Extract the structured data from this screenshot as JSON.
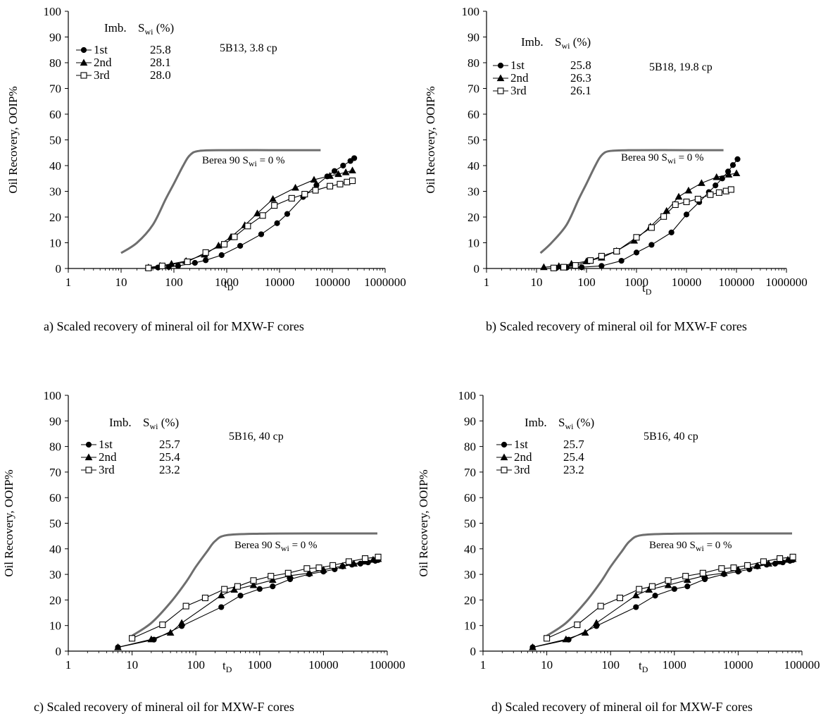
{
  "chart_data": [
    {
      "type": "line",
      "panel": "a",
      "caption": "a) Scaled recovery of mineral oil for MXW-F cores",
      "annotation": "5B13, 3.8 cp",
      "xlabel_main": "t",
      "xlabel_sub": "D",
      "ylabel": "Oil Recovery, OOIP%",
      "xscale": "log",
      "xlim": [
        1,
        1000000
      ],
      "ylim": [
        0,
        100
      ],
      "xticks": [
        "1",
        "10",
        "100",
        "1000",
        "10000",
        "100000",
        "1000000"
      ],
      "yticks": [
        "0",
        "10",
        "20",
        "30",
        "40",
        "50",
        "60",
        "70",
        "80",
        "90",
        "100"
      ],
      "legend": {
        "header_left": "Imb.",
        "header_right_main": "S",
        "header_right_sub": "wi",
        "header_right_tail": " (%)",
        "entries": [
          {
            "label": "1st",
            "swi": "25.8",
            "marker": "circle"
          },
          {
            "label": "2nd",
            "swi": "28.1",
            "marker": "triangle"
          },
          {
            "label": "3rd",
            "swi": "28.0",
            "marker": "square"
          }
        ]
      },
      "reference": {
        "label_main": "Berea  90  S",
        "label_sub": "wi",
        "label_tail": " = 0 %",
        "x": [
          10,
          20,
          40,
          70,
          100,
          150,
          200,
          300,
          1000,
          10000,
          60000
        ],
        "y": [
          6,
          10,
          17,
          27,
          33,
          40,
          44,
          45.7,
          46,
          46,
          46
        ]
      },
      "series": [
        {
          "name": "1st",
          "marker": "circle",
          "x": [
            33,
            50,
            80,
            120,
            250,
            400,
            800,
            1800,
            4500,
            9000,
            14000,
            28000,
            50000,
            80000,
            110000,
            160000,
            220000,
            260000
          ],
          "y": [
            0.3,
            0.4,
            0.6,
            1.0,
            2.2,
            3.2,
            5.2,
            8.8,
            13.3,
            17.6,
            21.2,
            27.8,
            32.4,
            35.8,
            37.9,
            40.0,
            41.8,
            42.9
          ]
        },
        {
          "name": "2nd",
          "marker": "triangle",
          "x": [
            33,
            55,
            90,
            170,
            380,
            700,
            1200,
            2200,
            3800,
            7500,
            20000,
            45000,
            90000,
            130000,
            180000,
            240000
          ],
          "y": [
            0.4,
            1.0,
            1.8,
            2.9,
            5.4,
            8.9,
            12.2,
            16.8,
            21.4,
            27.0,
            31.4,
            34.5,
            36.0,
            36.7,
            37.4,
            38.1
          ]
        },
        {
          "name": "3rd",
          "marker": "square",
          "x": [
            33,
            60,
            180,
            400,
            900,
            1400,
            2500,
            4800,
            8000,
            17000,
            30000,
            48000,
            90000,
            140000,
            190000,
            240000
          ],
          "y": [
            0.2,
            1.0,
            2.6,
            6.2,
            9.4,
            12.3,
            16.5,
            20.6,
            24.5,
            27.3,
            28.9,
            30.4,
            32.0,
            32.8,
            33.6,
            34.1
          ]
        }
      ]
    },
    {
      "type": "line",
      "panel": "b",
      "caption": "b) Scaled recovery of mineral oil for MXW-F cores",
      "annotation": "5B18, 19.8 cp",
      "xlabel_main": "t",
      "xlabel_sub": "D",
      "ylabel": "Oil Recovery, OOIP%",
      "xscale": "log",
      "xlim": [
        1,
        1000000
      ],
      "ylim": [
        0,
        100
      ],
      "xticks": [
        "1",
        "10",
        "100",
        "1000",
        "10000",
        "100000",
        "1000000"
      ],
      "yticks": [
        "0",
        "10",
        "20",
        "30",
        "40",
        "50",
        "60",
        "70",
        "80",
        "90",
        "100"
      ],
      "legend": {
        "header_left": "Imb.",
        "header_right_main": "S",
        "header_right_sub": "wi",
        "header_right_tail": " (%)",
        "entries": [
          {
            "label": "1st",
            "swi": "25.8",
            "marker": "circle"
          },
          {
            "label": "2nd",
            "swi": "26.3",
            "marker": "triangle"
          },
          {
            "label": "3rd",
            "swi": "26.1",
            "marker": "square"
          }
        ]
      },
      "reference": {
        "label_main": "Berea  90  S",
        "label_sub": "wi",
        "label_tail": " = 0 %",
        "x": [
          12,
          20,
          40,
          70,
          100,
          150,
          200,
          300,
          1000,
          10000,
          55000
        ],
        "y": [
          6,
          10,
          17,
          27,
          33,
          40,
          44,
          45.7,
          46,
          46,
          46
        ]
      },
      "series": [
        {
          "name": "1st",
          "marker": "circle",
          "x": [
            25,
            40,
            80,
            200,
            500,
            1000,
            2000,
            5000,
            10000,
            18000,
            28000,
            38000,
            52000,
            68000,
            85000,
            105000
          ],
          "y": [
            0.2,
            0.3,
            0.5,
            1.0,
            3.0,
            6.2,
            9.2,
            14.0,
            21.0,
            25.8,
            29.7,
            32.3,
            35.0,
            37.7,
            40.2,
            42.5
          ]
        },
        {
          "name": "2nd",
          "marker": "triangle",
          "x": [
            14,
            28,
            50,
            100,
            200,
            400,
            900,
            1900,
            4000,
            7000,
            11000,
            20000,
            40000,
            70000,
            100000
          ],
          "y": [
            0.5,
            0.9,
            1.8,
            2.8,
            4.2,
            6.8,
            10.8,
            16.3,
            22.4,
            27.9,
            30.3,
            33.2,
            35.5,
            36.5,
            37.0
          ]
        },
        {
          "name": "3rd",
          "marker": "square",
          "x": [
            22,
            35,
            60,
            120,
            200,
            400,
            1000,
            2000,
            3500,
            6000,
            10000,
            17000,
            30000,
            45000,
            62000,
            78000
          ],
          "y": [
            0.2,
            0.5,
            1.2,
            3.1,
            4.8,
            6.7,
            12.1,
            15.9,
            20.2,
            24.8,
            25.9,
            27.0,
            28.7,
            29.5,
            30.1,
            30.7
          ]
        }
      ]
    },
    {
      "type": "line",
      "panel": "c",
      "caption": "c) Scaled recovery of mineral oil for MXW-F cores",
      "annotation": "5B16, 40 cp",
      "xlabel_main": "t",
      "xlabel_sub": "D",
      "ylabel": "Oil Recovery, OOIP%",
      "xscale": "log",
      "xlim": [
        1,
        100000
      ],
      "ylim": [
        0,
        100
      ],
      "xticks": [
        "1",
        "10",
        "100",
        "1000",
        "10000",
        "100000"
      ],
      "yticks": [
        "0",
        "10",
        "20",
        "30",
        "40",
        "50",
        "60",
        "70",
        "80",
        "90",
        "100"
      ],
      "legend": {
        "header_left": "Imb.",
        "header_right_main": "S",
        "header_right_sub": "wi",
        "header_right_tail": " (%)",
        "entries": [
          {
            "label": "1st",
            "swi": "25.7",
            "marker": "circle"
          },
          {
            "label": "2nd",
            "swi": "25.4",
            "marker": "triangle"
          },
          {
            "label": "3rd",
            "swi": "23.2",
            "marker": "square"
          }
        ]
      },
      "reference": {
        "label_main": "Berea  90  S",
        "label_sub": "wi",
        "label_tail": " = 0 %",
        "x": [
          10,
          20,
          40,
          70,
          100,
          150,
          200,
          300,
          1000,
          10000,
          70000
        ],
        "y": [
          6,
          11,
          19,
          27,
          33,
          39,
          43,
          45.3,
          45.9,
          46,
          46
        ]
      },
      "series": [
        {
          "name": "1st",
          "marker": "circle",
          "x": [
            6,
            22,
            60,
            250,
            500,
            1000,
            1600,
            3000,
            6000,
            10000,
            15000,
            20000,
            28000,
            38000,
            50000,
            65000,
            72000
          ],
          "y": [
            1.5,
            4.5,
            9.8,
            17.2,
            21.7,
            24.3,
            25.3,
            28.1,
            30.1,
            31.1,
            32.0,
            33.1,
            33.8,
            34.2,
            34.7,
            35.3,
            35.6
          ]
        },
        {
          "name": "2nd",
          "marker": "triangle",
          "x": [
            6,
            20,
            40,
            60,
            250,
            400,
            800,
            1600,
            3000,
            6000,
            10000,
            20000,
            30000,
            45000,
            60000,
            72000
          ],
          "y": [
            1.5,
            4.6,
            7.2,
            11.0,
            21.8,
            24.0,
            25.8,
            27.8,
            29.5,
            30.5,
            31.8,
            33.3,
            34.2,
            35.0,
            35.7,
            36.0
          ]
        },
        {
          "name": "3rd",
          "marker": "square",
          "x": [
            10,
            30,
            70,
            140,
            280,
            450,
            800,
            1500,
            2800,
            5500,
            8500,
            14000,
            25000,
            45000,
            72000
          ],
          "y": [
            5.0,
            10.3,
            17.6,
            20.8,
            24.2,
            25.3,
            27.6,
            29.3,
            30.5,
            32.3,
            32.6,
            33.5,
            35.0,
            36.2,
            36.8
          ]
        }
      ]
    },
    {
      "type": "line",
      "panel": "d",
      "caption": "d) Scaled recovery of mineral oil for MXW-F cores",
      "annotation": "5B16, 40 cp",
      "xlabel_main": "t",
      "xlabel_sub": "D",
      "ylabel": "Oil Recovery, OOIP%",
      "xscale": "log",
      "xlim": [
        1,
        100000
      ],
      "ylim": [
        0,
        100
      ],
      "xticks": [
        "1",
        "10",
        "100",
        "1000",
        "10000",
        "100000"
      ],
      "yticks": [
        "0",
        "10",
        "20",
        "30",
        "40",
        "50",
        "60",
        "70",
        "80",
        "90",
        "100"
      ],
      "legend": {
        "header_left": "Imb.",
        "header_right_main": "S",
        "header_right_sub": "wi",
        "header_right_tail": " (%)",
        "entries": [
          {
            "label": "1st",
            "swi": "25.7",
            "marker": "circle"
          },
          {
            "label": "2nd",
            "swi": "25.4",
            "marker": "triangle"
          },
          {
            "label": "3rd",
            "swi": "23.2",
            "marker": "square"
          }
        ]
      },
      "reference": {
        "label_main": "Berea  90  S",
        "label_sub": "wi",
        "label_tail": " = 0 %",
        "x": [
          10,
          20,
          40,
          70,
          100,
          150,
          200,
          300,
          1000,
          10000,
          70000
        ],
        "y": [
          6,
          11,
          19,
          27,
          33,
          39,
          43,
          45.3,
          45.9,
          46,
          46
        ]
      },
      "series": [
        {
          "name": "1st",
          "marker": "circle",
          "x": [
            6,
            22,
            60,
            250,
            500,
            1000,
            1600,
            3000,
            6000,
            10000,
            15000,
            20000,
            28000,
            38000,
            50000,
            65000,
            72000
          ],
          "y": [
            1.5,
            4.5,
            9.8,
            17.2,
            21.7,
            24.3,
            25.3,
            28.1,
            30.1,
            31.1,
            32.0,
            33.1,
            33.8,
            34.2,
            34.7,
            35.3,
            35.6
          ]
        },
        {
          "name": "2nd",
          "marker": "triangle",
          "x": [
            6,
            20,
            40,
            60,
            250,
            400,
            800,
            1600,
            3000,
            6000,
            10000,
            20000,
            30000,
            45000,
            60000,
            72000
          ],
          "y": [
            1.5,
            4.6,
            7.2,
            11.0,
            21.8,
            24.0,
            25.8,
            27.8,
            29.5,
            30.5,
            31.8,
            33.3,
            34.2,
            35.0,
            35.7,
            36.0
          ]
        },
        {
          "name": "3rd",
          "marker": "square",
          "x": [
            10,
            30,
            70,
            140,
            280,
            450,
            800,
            1500,
            2800,
            5500,
            8500,
            14000,
            25000,
            45000,
            72000
          ],
          "y": [
            5.0,
            10.3,
            17.6,
            20.8,
            24.2,
            25.3,
            27.6,
            29.3,
            30.5,
            32.3,
            32.6,
            33.5,
            35.0,
            36.2,
            36.8
          ]
        }
      ]
    }
  ],
  "colors": {
    "reference_curve": "#6e6e6e",
    "series_line": "#000000",
    "axis": "#000000",
    "background": "#ffffff"
  }
}
